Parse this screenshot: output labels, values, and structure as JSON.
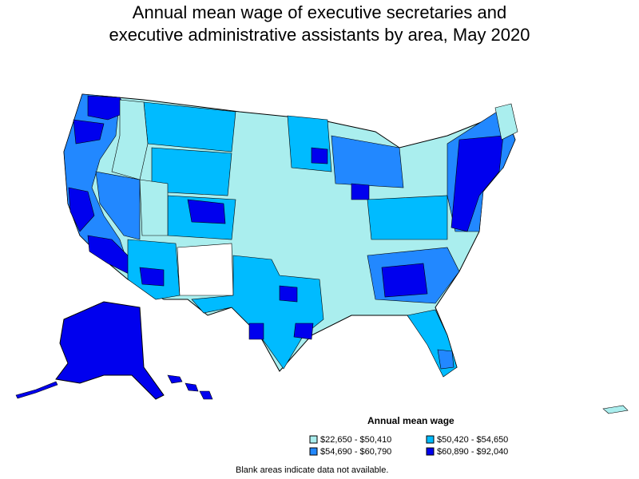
{
  "title_line1": "Annual mean wage of executive secretaries and",
  "title_line2": "executive administrative assistants by area, May 2020",
  "legend": {
    "title": "Annual mean wage",
    "items": [
      {
        "label": "$22,650 - $50,410",
        "color": "#aaeeee"
      },
      {
        "label": "$50,420 - $54,650",
        "color": "#00bbff"
      },
      {
        "label": "$54,690 - $60,790",
        "color": "#2288ff"
      },
      {
        "label": "$60,890 - $92,040",
        "color": "#0000ee"
      }
    ]
  },
  "note": "Blank areas indicate data not available."
}
